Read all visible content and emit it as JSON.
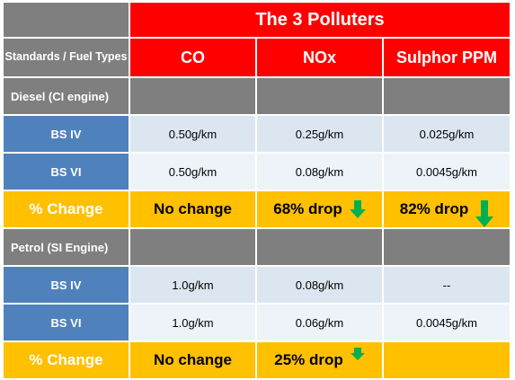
{
  "title": "The 3 Polluters",
  "header": {
    "row_label": "Standards / Fuel Types",
    "columns": [
      "CO",
      "NOx",
      "Sulphor PPM"
    ]
  },
  "sections": [
    {
      "label": "Diesel (CI engine)",
      "rows": [
        {
          "standard": "BS IV",
          "values": [
            "0.50g/km",
            "0.25g/km",
            "0.025g/km"
          ]
        },
        {
          "standard": "BS VI",
          "values": [
            "0.50g/km",
            "0.08g/km",
            "0.0045g/km"
          ]
        }
      ],
      "change": {
        "label": "% Change",
        "values": [
          "No change",
          "68% drop",
          "82% drop"
        ]
      }
    },
    {
      "label": "Petrol (SI Engine)",
      "rows": [
        {
          "standard": "BS IV",
          "values": [
            "1.0g/km",
            "0.08g/km",
            "--"
          ]
        },
        {
          "standard": "BS VI",
          "values": [
            "1.0g/km",
            "0.06g/km",
            "0.0045g/km"
          ]
        }
      ],
      "change": {
        "label": "% Change",
        "values": [
          "No change",
          "25% drop",
          ""
        ]
      }
    }
  ],
  "icons": {
    "drop_arrow": "down-arrow-icon",
    "arrow_color": "#00b050"
  },
  "colors": {
    "title_bg": "#ff0000",
    "header_bg": "#7f7f7f",
    "standard_bg": "#4f81bd",
    "change_bg": "#ffc000"
  }
}
